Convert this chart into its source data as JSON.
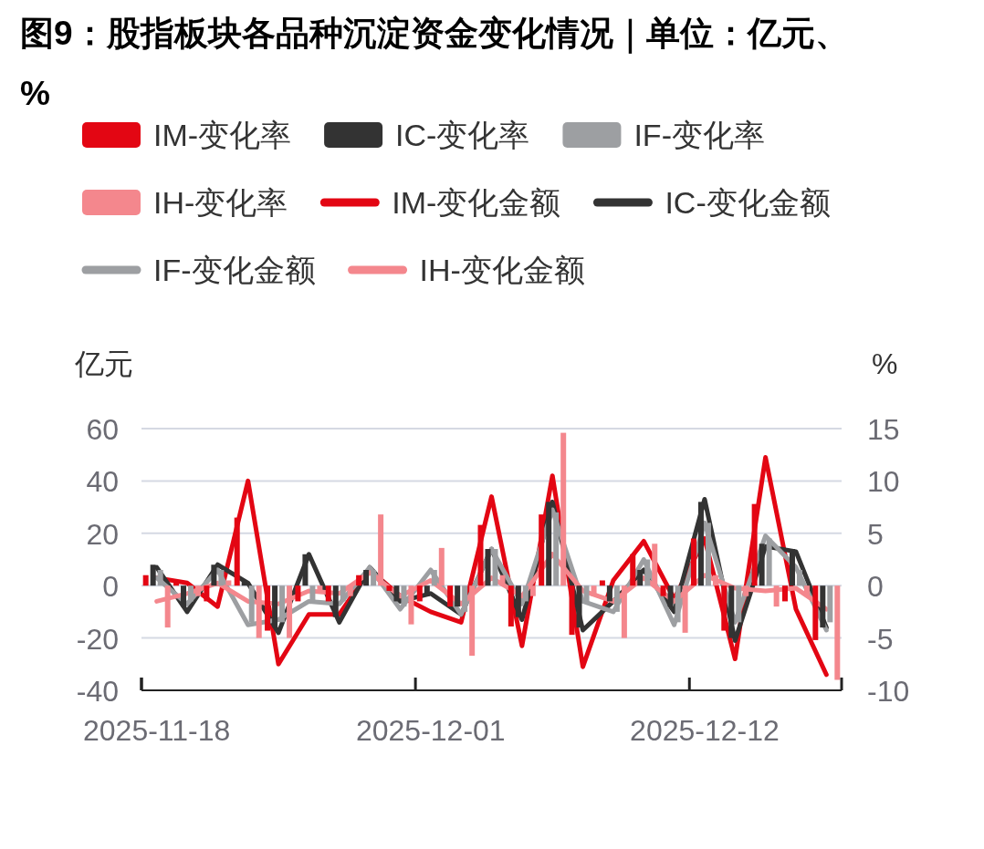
{
  "chart_data": {
    "type": "bar",
    "title": "图9：股指板块各品种沉淀资金变化情况｜单位：亿元、%",
    "ylabel": "亿元",
    "y2label": "%",
    "categories": [
      "2025-11-18",
      null,
      null,
      null,
      null,
      null,
      null,
      null,
      null,
      "2025-12-01",
      null,
      null,
      null,
      null,
      null,
      null,
      null,
      null,
      "2025-12-12",
      null,
      null,
      null,
      null
    ],
    "ylim": [
      -40,
      60
    ],
    "yticks": [
      -40,
      -20,
      0,
      20,
      40,
      60
    ],
    "y2lim": [
      -10,
      15
    ],
    "y2ticks": [
      -10,
      -5,
      0,
      5,
      10,
      15
    ],
    "grid": "y",
    "legend": "top",
    "series": [
      {
        "name": "IM-变化率",
        "axis": "y2",
        "color": "#e30613",
        "values": [
          1,
          0.5,
          -1.5,
          6.5,
          -4.3,
          -1.5,
          -1.5,
          1,
          -0.5,
          -1.5,
          -2,
          5.8,
          -3.9,
          6.8,
          -4.7,
          0.5,
          3,
          -1,
          4.5,
          -4.3,
          7.8,
          -1.5,
          -5.2
        ]
      },
      {
        "name": "IC-变化率",
        "axis": "y2",
        "color": "#333333",
        "values": [
          2,
          -2,
          2,
          0.5,
          -4,
          3,
          -3,
          1.5,
          -1.5,
          -1,
          -2,
          3.5,
          -3,
          8,
          -4,
          -1.5,
          1.5,
          -2,
          8,
          -5,
          4,
          3.5,
          -4
        ]
      },
      {
        "name": "IF-变化率",
        "axis": "y2",
        "color": "#9d9fa2",
        "values": [
          1.5,
          -1.5,
          1.5,
          -3.5,
          -3.5,
          -1.5,
          -1.5,
          1.5,
          -2,
          1.5,
          -2.5,
          3.5,
          -1.5,
          7,
          -1.5,
          -2.5,
          2.5,
          -3.5,
          6,
          -3.5,
          4.5,
          1.5,
          -3.5
        ]
      },
      {
        "name": "IH-变化率",
        "axis": "y2",
        "color": "#f4878d",
        "values": [
          -4,
          -1,
          0.5,
          -5,
          -5,
          -0.5,
          -1,
          6.8,
          -3.7,
          3.6,
          -6.7,
          1,
          -1,
          14.6,
          -1,
          -5,
          4,
          -4.5,
          1,
          -1,
          -2,
          -1,
          -9
        ]
      },
      {
        "name": "IM-变化金额",
        "type": "line",
        "color": "#e30613",
        "values": [
          3,
          1,
          -8,
          40,
          -30,
          -11,
          -11,
          6,
          -4,
          -10,
          -14,
          34,
          -23,
          42,
          -31,
          2,
          17,
          -5,
          18,
          -28,
          49,
          -9,
          -34
        ]
      },
      {
        "name": "IC-变化金额",
        "type": "line",
        "color": "#333333",
        "values": [
          7,
          -10,
          8,
          1,
          -18,
          12,
          -14,
          7,
          -6,
          -3,
          -11,
          14,
          -13,
          32,
          -17,
          -6,
          6,
          -10,
          33,
          -21,
          15,
          13,
          -16
        ]
      },
      {
        "name": "IF-变化金额",
        "type": "line",
        "color": "#9d9fa2",
        "values": [
          3,
          -7,
          6,
          -15,
          -13,
          -6,
          -7,
          7,
          -9,
          6,
          -11,
          14,
          -7,
          29,
          -6,
          -10,
          10,
          -15,
          24,
          -14,
          19,
          7,
          -17
        ]
      },
      {
        "name": "IH-变化金额",
        "type": "line",
        "color": "#f4878d",
        "values": [
          -6,
          -3,
          1,
          -6,
          -7,
          -2,
          -3,
          5,
          -4,
          2,
          -7,
          3,
          -4,
          12,
          -2,
          -6,
          3,
          -6,
          4,
          -1,
          -2,
          -1,
          -9
        ]
      }
    ]
  }
}
